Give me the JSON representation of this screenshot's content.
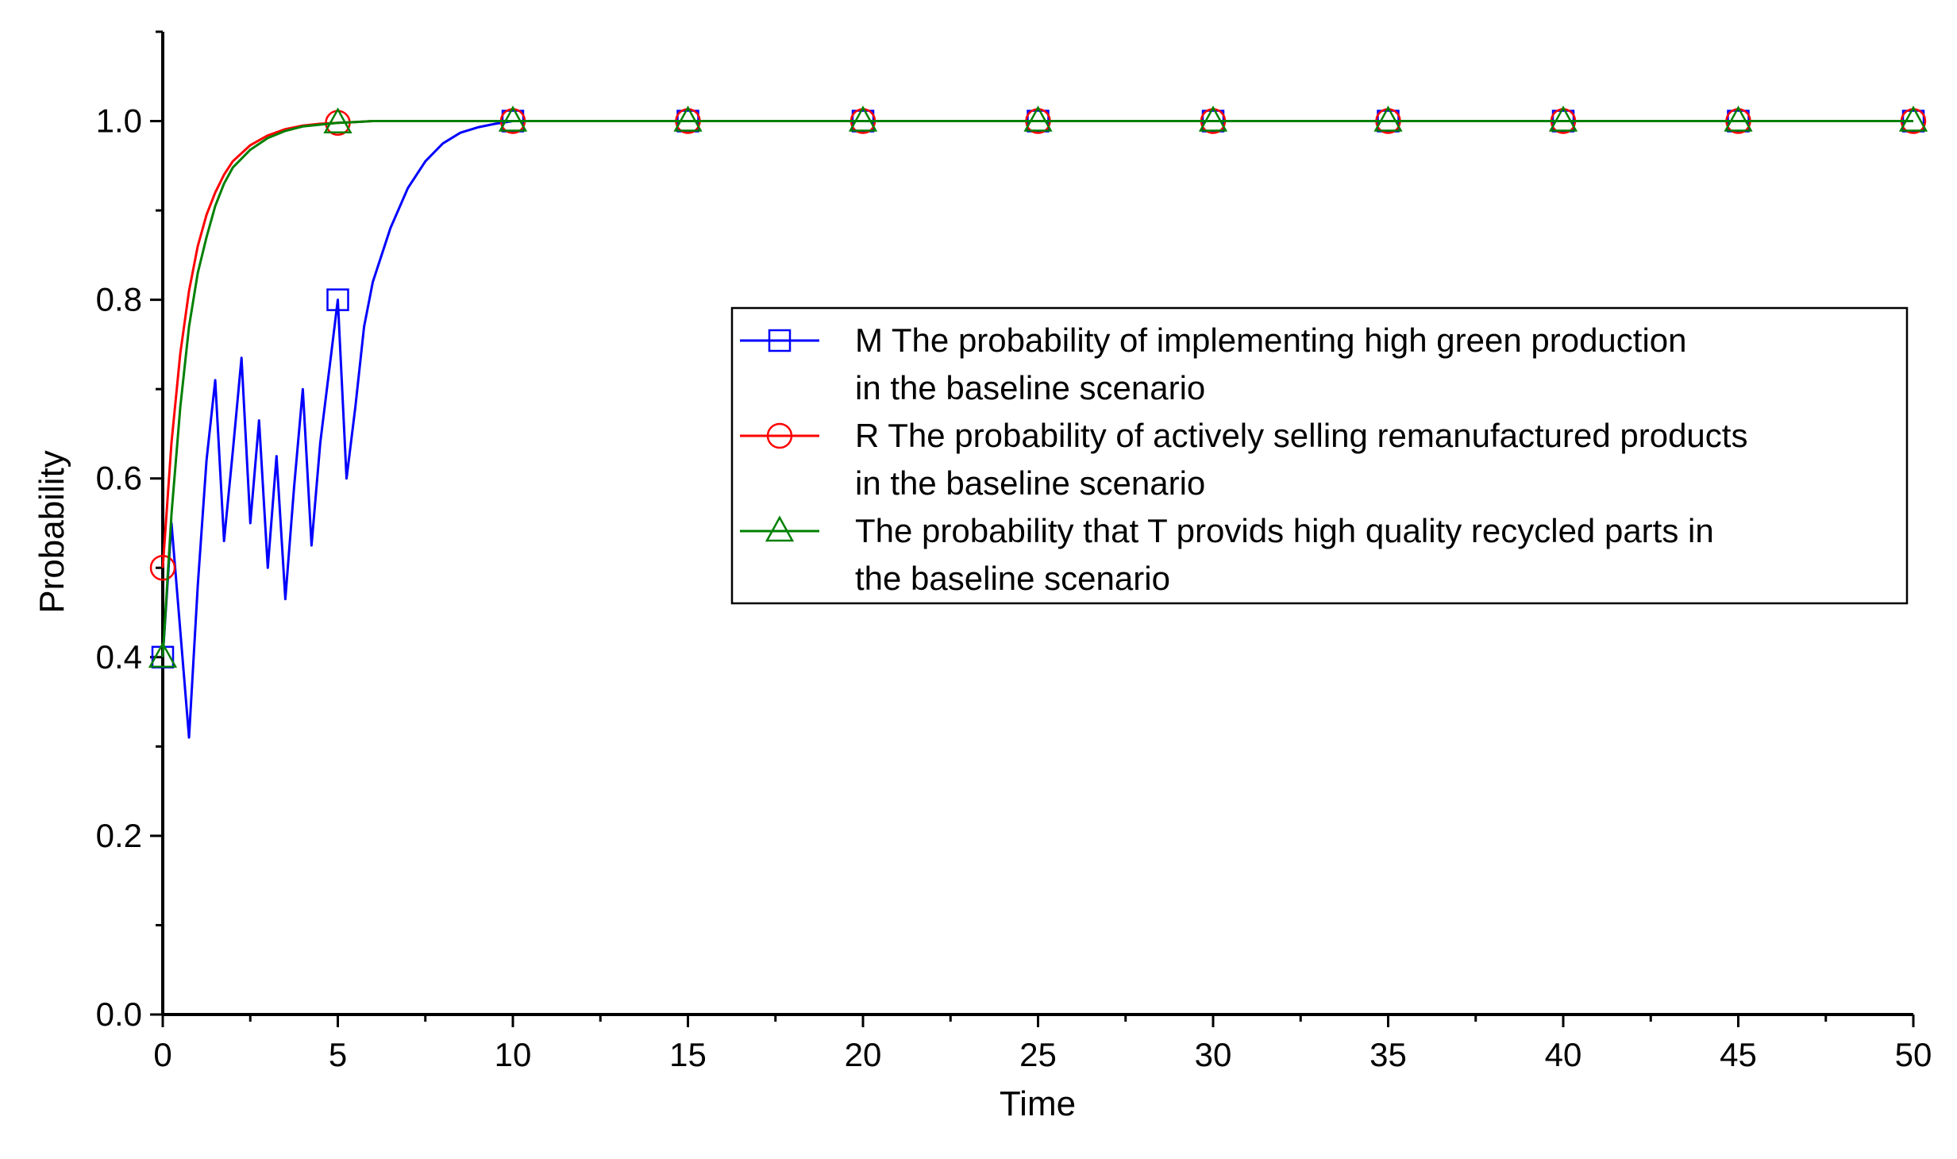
{
  "chart_data": {
    "type": "line",
    "xlabel": "Time",
    "ylabel": "Probability",
    "xlim": [
      0,
      50
    ],
    "ylim": [
      0,
      1.1
    ],
    "x_ticks": [
      "0",
      "5",
      "10",
      "15",
      "20",
      "25",
      "30",
      "35",
      "40",
      "45",
      "50"
    ],
    "y_ticks": [
      "0.0",
      "0.2",
      "0.4",
      "0.6",
      "0.8",
      "1.0"
    ],
    "grid": false,
    "legend_position": "right-center",
    "series": [
      {
        "key": "M",
        "color": "#0000FF",
        "marker": "square",
        "legend_lines": [
          "M The probability of implementing high green production",
          "in the baseline scenario"
        ],
        "x": [
          0,
          0.25,
          0.75,
          1.0,
          1.25,
          1.5,
          1.75,
          2.0,
          2.25,
          2.5,
          2.75,
          3.0,
          3.25,
          3.5,
          3.75,
          4.0,
          4.25,
          4.5,
          4.75,
          5.0,
          5.25,
          5.5,
          5.75,
          6.0,
          6.5,
          7.0,
          7.5,
          8.0,
          8.5,
          9.0,
          9.5,
          10,
          15,
          20,
          25,
          30,
          35,
          40,
          45,
          50
        ],
        "y": [
          0.4,
          0.55,
          0.31,
          0.48,
          0.62,
          0.71,
          0.53,
          0.63,
          0.735,
          0.55,
          0.665,
          0.5,
          0.625,
          0.465,
          0.59,
          0.7,
          0.525,
          0.64,
          0.72,
          0.8,
          0.6,
          0.68,
          0.77,
          0.82,
          0.88,
          0.925,
          0.955,
          0.975,
          0.987,
          0.993,
          0.997,
          1.0,
          1.0,
          1.0,
          1.0,
          1.0,
          1.0,
          1.0,
          1.0,
          1.0
        ],
        "marker_x": [
          0,
          5,
          10,
          15,
          20,
          25,
          30,
          35,
          40,
          45,
          50
        ]
      },
      {
        "key": "R",
        "color": "#FF0000",
        "marker": "circle",
        "legend_lines": [
          "R The probability of actively selling remanufactured products",
          "in the baseline scenario"
        ],
        "x": [
          0,
          0.25,
          0.5,
          0.75,
          1.0,
          1.25,
          1.5,
          1.75,
          2.0,
          2.5,
          3.0,
          3.5,
          4.0,
          4.5,
          5.0,
          5.5,
          6.0,
          7.0,
          8.0,
          10,
          15,
          20,
          25,
          30,
          35,
          40,
          45,
          50
        ],
        "y": [
          0.5,
          0.64,
          0.74,
          0.81,
          0.86,
          0.895,
          0.92,
          0.94,
          0.955,
          0.973,
          0.984,
          0.991,
          0.995,
          0.997,
          0.998,
          0.999,
          1.0,
          1.0,
          1.0,
          1.0,
          1.0,
          1.0,
          1.0,
          1.0,
          1.0,
          1.0,
          1.0,
          1.0
        ],
        "marker_x": [
          0,
          5,
          10,
          15,
          20,
          25,
          30,
          35,
          40,
          45,
          50
        ]
      },
      {
        "key": "T",
        "color": "#008000",
        "marker": "triangle",
        "legend_lines": [
          "The probability that T provids high quality recycled parts in",
          "the baseline scenario"
        ],
        "x": [
          0,
          0.25,
          0.5,
          0.75,
          1.0,
          1.25,
          1.5,
          1.75,
          2.0,
          2.5,
          3.0,
          3.5,
          4.0,
          4.5,
          5.0,
          5.5,
          6.0,
          7.0,
          8.0,
          10,
          15,
          20,
          25,
          30,
          35,
          40,
          45,
          50
        ],
        "y": [
          0.4,
          0.56,
          0.68,
          0.77,
          0.83,
          0.87,
          0.905,
          0.93,
          0.948,
          0.968,
          0.981,
          0.989,
          0.994,
          0.996,
          0.998,
          0.999,
          1.0,
          1.0,
          1.0,
          1.0,
          1.0,
          1.0,
          1.0,
          1.0,
          1.0,
          1.0,
          1.0,
          1.0
        ],
        "marker_x": [
          0,
          5,
          10,
          15,
          20,
          25,
          30,
          35,
          40,
          45,
          50
        ]
      }
    ]
  }
}
